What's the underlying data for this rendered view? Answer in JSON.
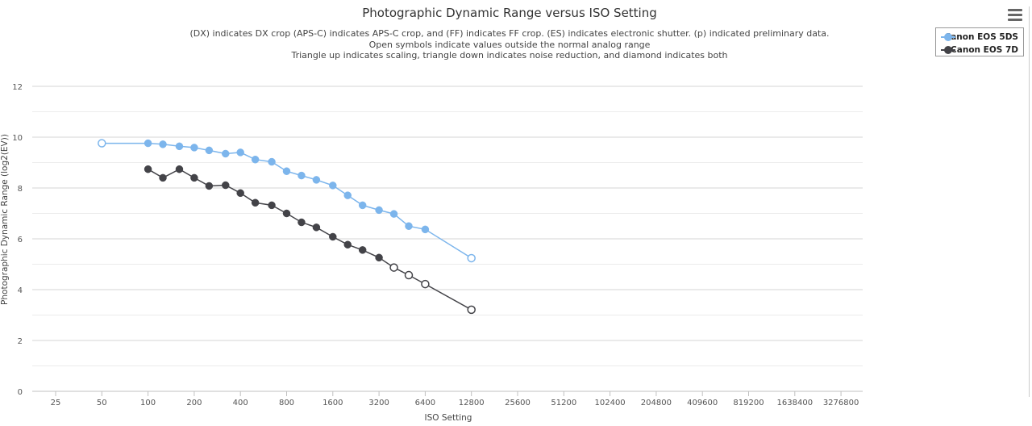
{
  "chart_data": {
    "type": "line",
    "title": "Photographic Dynamic Range versus ISO Setting",
    "subtitle": [
      "(DX) indicates DX crop (APS-C) indicates APS-C crop, and (FF) indicates FF crop. (ES) indicates electronic shutter. (p) indicated preliminary data.",
      "Open symbols indicate values outside the normal analog range",
      "Triangle up indicates scaling, triangle down indicates noise reduction, and diamond indicates both"
    ],
    "xlabel": "ISO Setting",
    "ylabel": "Photographic Dynamic Range (log2(EV))",
    "x_scale": "log2",
    "x_ticks": [
      "25",
      "50",
      "100",
      "200",
      "400",
      "800",
      "1600",
      "3200",
      "6400",
      "12800",
      "25600",
      "51200",
      "102400",
      "204800",
      "409600",
      "819200",
      "1638400",
      "3276800"
    ],
    "ylim": [
      0,
      12.5
    ],
    "y_ticks": [
      0,
      2,
      4,
      6,
      8,
      10,
      12
    ],
    "grid": true,
    "legend": "top-right",
    "series": [
      {
        "name": "Canon EOS 5DS",
        "color": "#7cb5ec",
        "points": [
          {
            "x": 50,
            "y": 9.76,
            "open": true
          },
          {
            "x": 100,
            "y": 9.76,
            "open": false
          },
          {
            "x": 125,
            "y": 9.72,
            "open": false
          },
          {
            "x": 160,
            "y": 9.64,
            "open": false
          },
          {
            "x": 200,
            "y": 9.59,
            "open": false
          },
          {
            "x": 250,
            "y": 9.48,
            "open": false
          },
          {
            "x": 320,
            "y": 9.35,
            "open": false
          },
          {
            "x": 400,
            "y": 9.4,
            "open": false
          },
          {
            "x": 500,
            "y": 9.12,
            "open": false
          },
          {
            "x": 640,
            "y": 9.03,
            "open": false
          },
          {
            "x": 800,
            "y": 8.66,
            "open": false
          },
          {
            "x": 1000,
            "y": 8.49,
            "open": false
          },
          {
            "x": 1250,
            "y": 8.32,
            "open": false
          },
          {
            "x": 1600,
            "y": 8.1,
            "open": false
          },
          {
            "x": 2000,
            "y": 7.71,
            "open": false
          },
          {
            "x": 2500,
            "y": 7.32,
            "open": false
          },
          {
            "x": 3200,
            "y": 7.13,
            "open": false
          },
          {
            "x": 4000,
            "y": 6.98,
            "open": false
          },
          {
            "x": 5000,
            "y": 6.5,
            "open": false
          },
          {
            "x": 6400,
            "y": 6.37,
            "open": false
          },
          {
            "x": 12800,
            "y": 5.24,
            "open": true
          }
        ]
      },
      {
        "name": "Canon EOS 7D",
        "color": "#434348",
        "points": [
          {
            "x": 100,
            "y": 8.74,
            "open": false
          },
          {
            "x": 125,
            "y": 8.4,
            "open": false
          },
          {
            "x": 160,
            "y": 8.74,
            "open": false
          },
          {
            "x": 200,
            "y": 8.4,
            "open": false
          },
          {
            "x": 250,
            "y": 8.08,
            "open": false
          },
          {
            "x": 320,
            "y": 8.11,
            "open": false
          },
          {
            "x": 400,
            "y": 7.8,
            "open": false
          },
          {
            "x": 500,
            "y": 7.42,
            "open": false
          },
          {
            "x": 640,
            "y": 7.32,
            "open": false
          },
          {
            "x": 800,
            "y": 7.0,
            "open": false
          },
          {
            "x": 1000,
            "y": 6.65,
            "open": false
          },
          {
            "x": 1250,
            "y": 6.45,
            "open": false
          },
          {
            "x": 1600,
            "y": 6.08,
            "open": false
          },
          {
            "x": 2000,
            "y": 5.77,
            "open": false
          },
          {
            "x": 2500,
            "y": 5.56,
            "open": false
          },
          {
            "x": 3200,
            "y": 5.26,
            "open": false
          },
          {
            "x": 4000,
            "y": 4.87,
            "open": true
          },
          {
            "x": 5000,
            "y": 4.57,
            "open": true
          },
          {
            "x": 6400,
            "y": 4.22,
            "open": true
          },
          {
            "x": 12800,
            "y": 3.21,
            "open": true
          }
        ]
      }
    ]
  },
  "icons": {
    "menu": "hamburger-menu-icon"
  }
}
